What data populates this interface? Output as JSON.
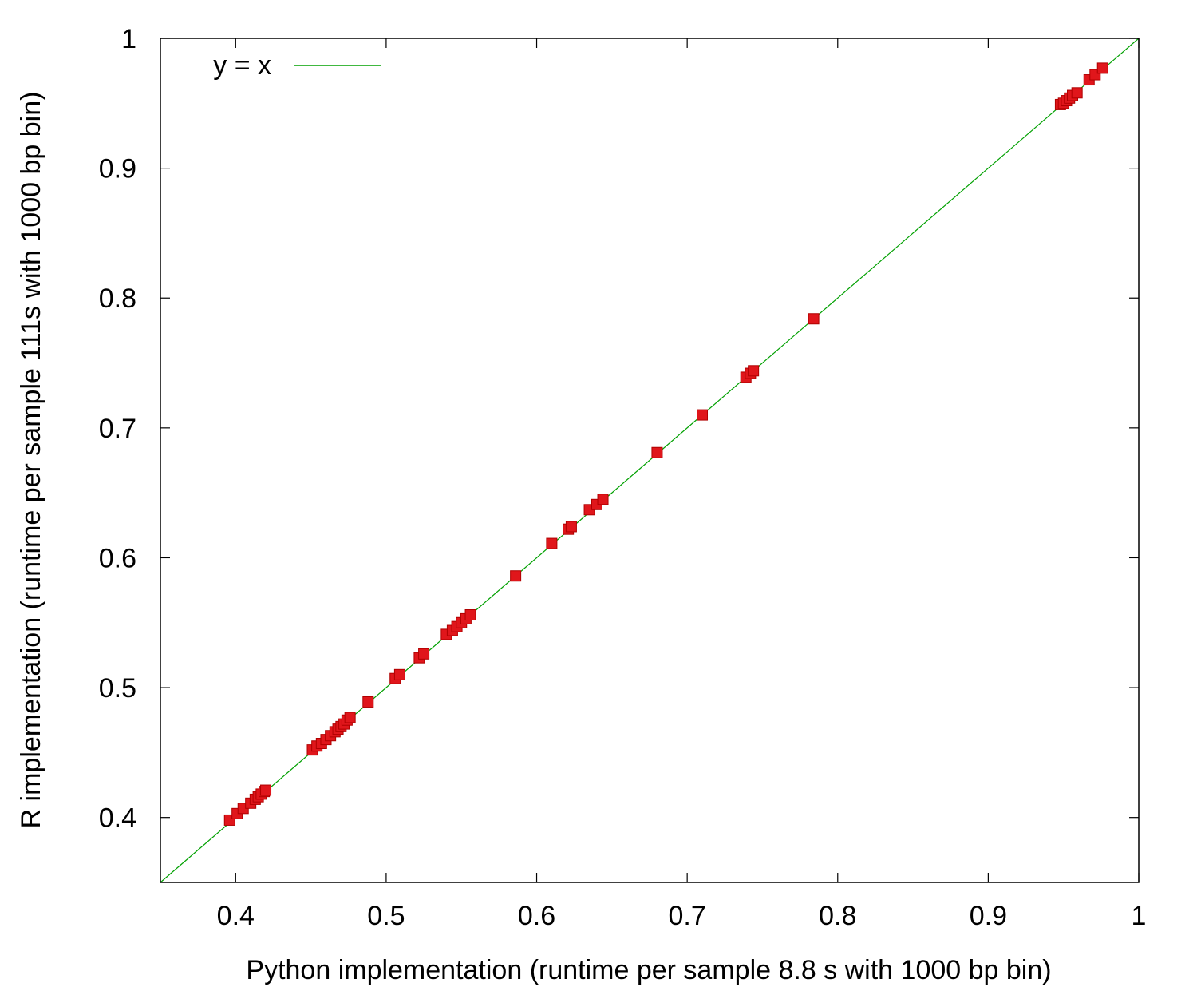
{
  "chart_data": {
    "type": "scatter",
    "title": "",
    "xlabel": "Python implementation (runtime per sample 8.8 s with 1000 bp bin)",
    "ylabel": "R implementation (runtime per sample 111s with 1000 bp bin)",
    "xlim": [
      0.35,
      1.0
    ],
    "ylim": [
      0.35,
      1.0
    ],
    "xticks": [
      0.4,
      0.5,
      0.6,
      0.7,
      0.8,
      0.9,
      1.0
    ],
    "yticks": [
      0.4,
      0.5,
      0.6,
      0.7,
      0.8,
      0.9,
      1.0
    ],
    "xtick_labels": [
      "0.4",
      "0.5",
      "0.6",
      "0.7",
      "0.8",
      "0.9",
      "1"
    ],
    "ytick_labels": [
      "0.4",
      "0.5",
      "0.6",
      "0.7",
      "0.8",
      "0.9",
      "1"
    ],
    "grid": false,
    "legend": {
      "position": "top-left",
      "entries": [
        {
          "label": "y = x",
          "color": "#00a000"
        }
      ]
    },
    "reference_line": {
      "name": "y = x",
      "color": "#00a000"
    },
    "marker_color": "#e0161b",
    "marker_edge_color": "#b00000",
    "points": {
      "x": [
        0.396,
        0.401,
        0.405,
        0.41,
        0.413,
        0.415,
        0.417,
        0.419,
        0.42,
        0.451,
        0.454,
        0.457,
        0.46,
        0.463,
        0.466,
        0.468,
        0.47,
        0.472,
        0.474,
        0.476,
        0.488,
        0.506,
        0.509,
        0.522,
        0.525,
        0.54,
        0.544,
        0.547,
        0.55,
        0.553,
        0.556,
        0.586,
        0.61,
        0.621,
        0.623,
        0.635,
        0.64,
        0.644,
        0.68,
        0.71,
        0.739,
        0.742,
        0.744,
        0.784,
        0.948,
        0.95,
        0.952,
        0.954,
        0.956,
        0.959,
        0.967,
        0.971,
        0.976
      ],
      "y": [
        0.398,
        0.403,
        0.407,
        0.411,
        0.414,
        0.416,
        0.418,
        0.42,
        0.421,
        0.452,
        0.455,
        0.457,
        0.46,
        0.463,
        0.466,
        0.468,
        0.47,
        0.472,
        0.475,
        0.477,
        0.489,
        0.507,
        0.51,
        0.523,
        0.526,
        0.541,
        0.544,
        0.547,
        0.55,
        0.553,
        0.556,
        0.586,
        0.611,
        0.622,
        0.624,
        0.637,
        0.641,
        0.645,
        0.681,
        0.71,
        0.739,
        0.742,
        0.744,
        0.784,
        0.949,
        0.95,
        0.952,
        0.954,
        0.956,
        0.958,
        0.968,
        0.972,
        0.977
      ]
    }
  }
}
